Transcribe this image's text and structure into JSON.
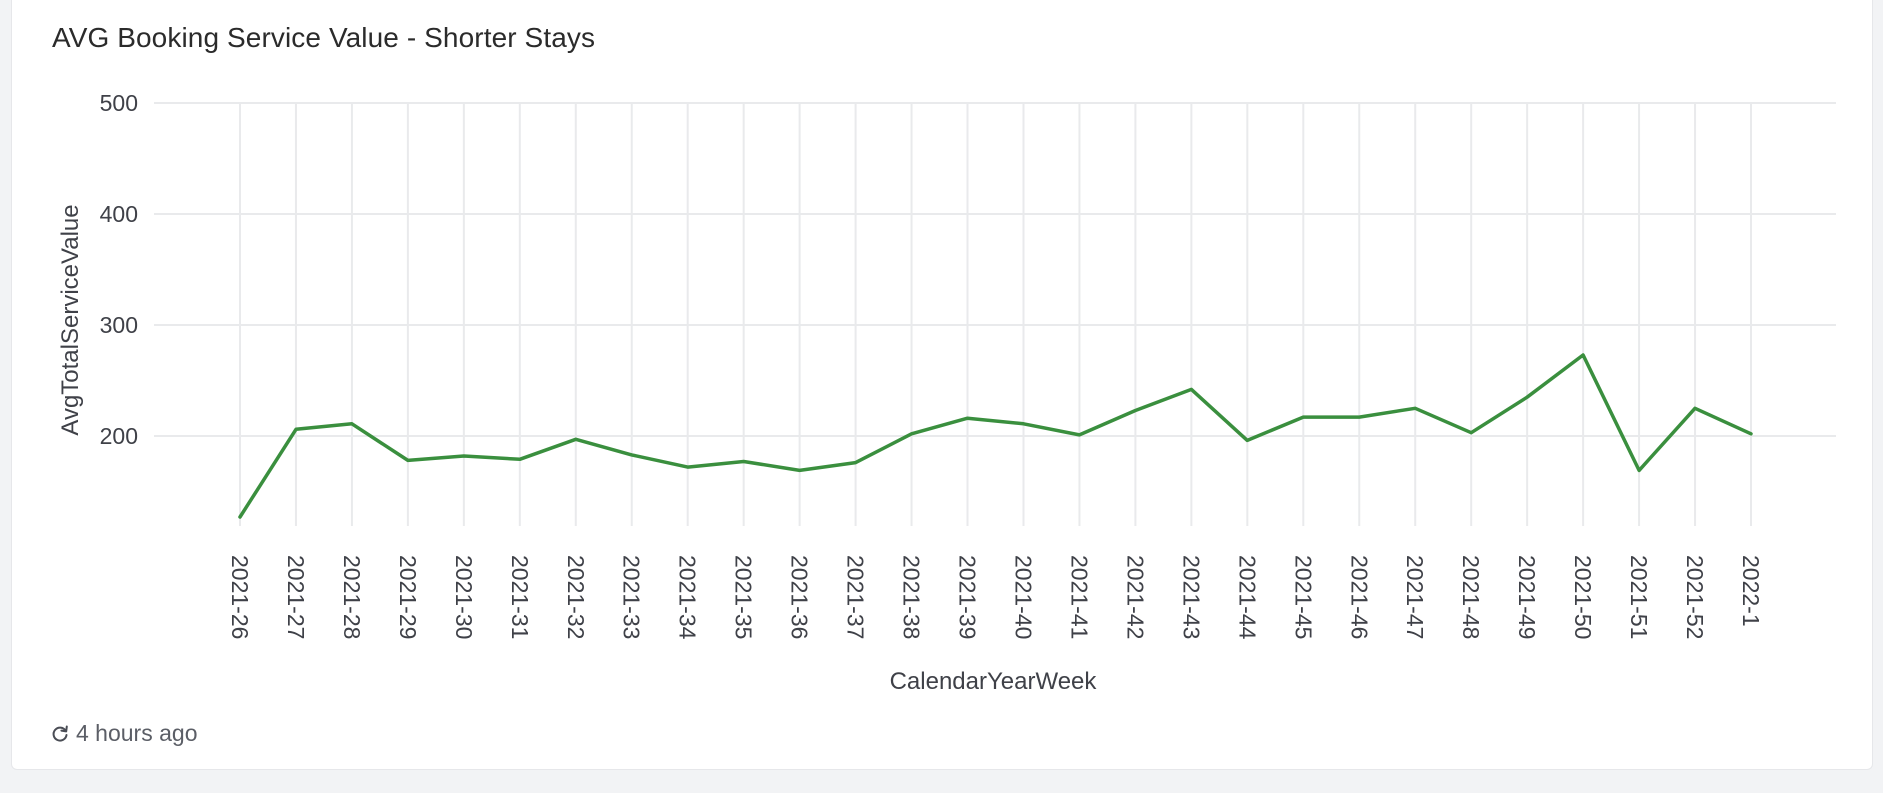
{
  "card": {
    "title": "AVG Booking Service Value - Shorter Stays",
    "refreshed": "4 hours ago",
    "refresh_icon": "refresh-icon"
  },
  "colors": {
    "line": "#3a8f3e",
    "grid": "#e9eaec",
    "text": "#3f4148"
  },
  "chart_data": {
    "type": "line",
    "title": "AVG Booking Service Value - Shorter Stays",
    "xlabel": "CalendarYearWeek",
    "ylabel": "AvgTotalServiceValue",
    "yticks": [
      200,
      300,
      400,
      500
    ],
    "ylim": [
      119,
      500
    ],
    "grid": true,
    "categories": [
      "2021-26",
      "2021-27",
      "2021-28",
      "2021-29",
      "2021-30",
      "2021-31",
      "2021-32",
      "2021-33",
      "2021-34",
      "2021-35",
      "2021-36",
      "2021-37",
      "2021-38",
      "2021-39",
      "2021-40",
      "2021-41",
      "2021-42",
      "2021-43",
      "2021-44",
      "2021-45",
      "2021-46",
      "2021-47",
      "2021-48",
      "2021-49",
      "2021-50",
      "2021-51",
      "2021-52",
      "2022-1"
    ],
    "series": [
      {
        "values": [
          127,
          206,
          211,
          178,
          182,
          179,
          197,
          183,
          172,
          177,
          169,
          176,
          202,
          216,
          211,
          201,
          223,
          242,
          196,
          217,
          217,
          225,
          203,
          235,
          273,
          169,
          225,
          202
        ]
      }
    ]
  }
}
